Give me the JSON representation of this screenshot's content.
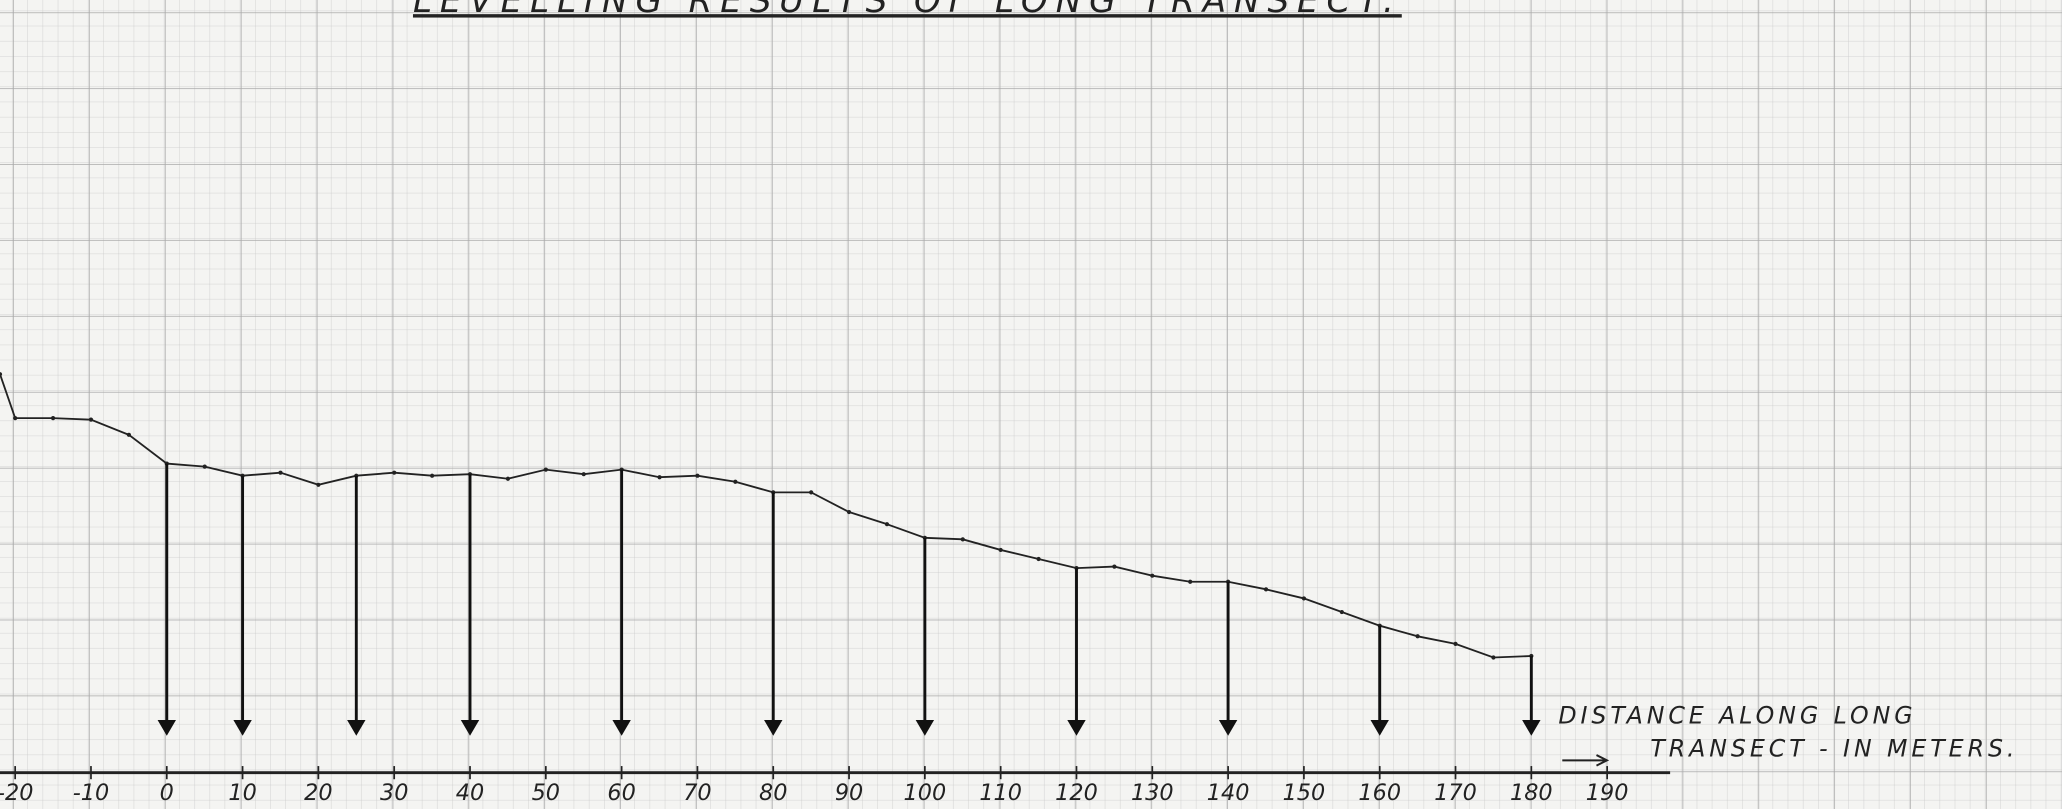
{
  "chart_data": {
    "type": "line",
    "title": "LEVELLING RESULTS OF LONG TRANSECT.",
    "xlabel_lines": [
      "DISTANCE ALONG LONG",
      "TRANSECT - IN METERS."
    ],
    "x": [
      -22,
      -20,
      -15,
      -10,
      -5,
      0,
      5,
      10,
      15,
      20,
      25,
      30,
      35,
      40,
      45,
      50,
      55,
      60,
      65,
      70,
      75,
      80,
      85,
      90,
      95,
      100,
      105,
      110,
      115,
      120,
      125,
      130,
      135,
      140,
      145,
      150,
      155,
      160,
      165,
      170,
      175,
      180
    ],
    "series": [
      {
        "color": "#222222",
        "values": [
          26.3,
          23.4,
          23.4,
          23.3,
          22.3,
          20.4,
          20.2,
          19.6,
          19.8,
          19.0,
          19.6,
          19.8,
          19.6,
          19.7,
          19.4,
          20.0,
          19.7,
          20.0,
          19.5,
          19.6,
          19.2,
          18.5,
          18.5,
          17.2,
          16.4,
          15.5,
          15.4,
          14.7,
          14.1,
          13.5,
          13.6,
          13.0,
          12.6,
          12.6,
          12.1,
          11.5,
          10.6,
          9.7,
          9.0,
          8.5,
          7.6,
          7.7
        ]
      }
    ],
    "arrows_at": [
      0,
      10,
      25,
      40,
      60,
      80,
      100,
      120,
      140,
      160,
      180
    ],
    "xlim": [
      -22,
      250
    ],
    "ylim": [
      -2.4,
      51
    ],
    "xticks": [
      -20,
      -10,
      0,
      10,
      20,
      30,
      40,
      50,
      60,
      70,
      80,
      90,
      100,
      110,
      120,
      130,
      140,
      150,
      160,
      170,
      180,
      190
    ]
  }
}
